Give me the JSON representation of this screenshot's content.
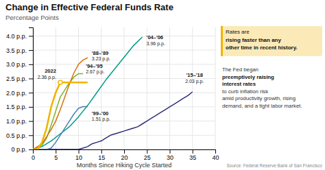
{
  "chart_data": {
    "type": "line",
    "title": "Change in Effective Federal Funds Rate",
    "subtitle": "Percentage Points",
    "x_label": "Months Since Hiking Cycle Started",
    "xlim": [
      0,
      40
    ],
    "ylim": [
      0,
      4.3
    ],
    "xticks": [
      0,
      5,
      10,
      15,
      20,
      25,
      30,
      35,
      40
    ],
    "yticks": [
      {
        "value": 0,
        "label": "0 p.p."
      },
      {
        "value": 0.5,
        "label": "0.5 p.p."
      },
      {
        "value": 1.0,
        "label": "1.0 p.p."
      },
      {
        "value": 1.5,
        "label": "1.5 p.p."
      },
      {
        "value": 2.0,
        "label": "2.0 p.p."
      },
      {
        "value": 2.5,
        "label": "2.5 p.p."
      },
      {
        "value": 3.0,
        "label": "3.0 p.p."
      },
      {
        "value": 3.5,
        "label": "3.5 p.p."
      },
      {
        "value": 4.0,
        "label": "4.0 p.p."
      }
    ],
    "grid": true,
    "series": [
      {
        "name": "'15–'18",
        "color": "#2e2e7a",
        "x": [
          0,
          1,
          2,
          3,
          4,
          5,
          6,
          7,
          8,
          9,
          10,
          11,
          12,
          13,
          14,
          15,
          16,
          17,
          18,
          19,
          20,
          21,
          22,
          23,
          24,
          25,
          26,
          27,
          28,
          29,
          30,
          31,
          32,
          33,
          34,
          35
        ],
        "values": [
          0,
          0,
          0,
          0,
          0,
          0,
          0,
          0,
          0,
          0,
          0,
          0.05,
          0.1,
          0.2,
          0.25,
          0.3,
          0.4,
          0.5,
          0.55,
          0.6,
          0.65,
          0.7,
          0.75,
          0.8,
          0.9,
          1.0,
          1.1,
          1.2,
          1.3,
          1.4,
          1.5,
          1.6,
          1.7,
          1.8,
          1.9,
          2.03
        ]
      },
      {
        "name": "'04–'06",
        "color": "#009b85",
        "x": [
          0,
          2,
          4,
          6,
          8,
          10,
          12,
          14,
          16,
          18,
          20,
          22,
          24
        ],
        "values": [
          0,
          0.1,
          0.3,
          0.55,
          0.8,
          1.15,
          1.55,
          2.0,
          2.45,
          2.85,
          3.25,
          3.65,
          3.96
        ]
      },
      {
        "name": "'99–'00",
        "color": "#4a7fb5",
        "x": [
          0,
          1,
          2,
          3,
          4,
          5,
          6,
          7,
          8,
          9,
          10,
          11,
          12
        ],
        "values": [
          0,
          0.0,
          0.0,
          0.0,
          0.05,
          0.25,
          0.5,
          0.75,
          1.0,
          1.25,
          1.45,
          1.51,
          1.51
        ]
      },
      {
        "name": "'94–'95",
        "color": "#7ab324",
        "x": [
          0,
          1,
          2,
          3,
          4,
          5,
          6,
          7,
          8,
          9,
          10,
          11
        ],
        "values": [
          0,
          0.05,
          0.15,
          0.4,
          0.85,
          1.35,
          1.85,
          2.1,
          2.35,
          2.55,
          2.67,
          2.67
        ]
      },
      {
        "name": "'88–'89",
        "color": "#d4730a",
        "x": [
          0,
          1,
          2,
          3,
          4,
          5,
          6,
          7,
          8,
          9,
          10,
          11,
          12
        ],
        "values": [
          0,
          0.1,
          0.2,
          0.45,
          0.7,
          1.0,
          1.4,
          1.85,
          2.3,
          2.7,
          3.0,
          3.15,
          3.23
        ]
      },
      {
        "name": "2022",
        "color": "#f0b400",
        "x": [
          0,
          1,
          2,
          3,
          4,
          5,
          6,
          7,
          8,
          9,
          10,
          11,
          12
        ],
        "values": [
          0,
          0.0,
          0.25,
          0.75,
          1.5,
          2.0,
          2.36,
          2.36,
          2.36,
          2.36,
          2.36,
          2.36,
          2.36
        ]
      }
    ],
    "annotations": [
      "2.03 p.p.",
      "3.96 p.p.",
      "1.51 p.p.",
      "2.67 p.p.",
      "3.23 p.p.",
      "2.36 p.p.",
      "Rates are",
      "rising faster than any",
      "other time in recent history.",
      "The Fed began",
      "preemptively raising",
      "interest rates",
      "to curb inflation risk",
      "amid productivity growth, rising",
      "demand, and a tight labor market.",
      "Source: Federal Reserve Bank of San Francisco"
    ]
  }
}
